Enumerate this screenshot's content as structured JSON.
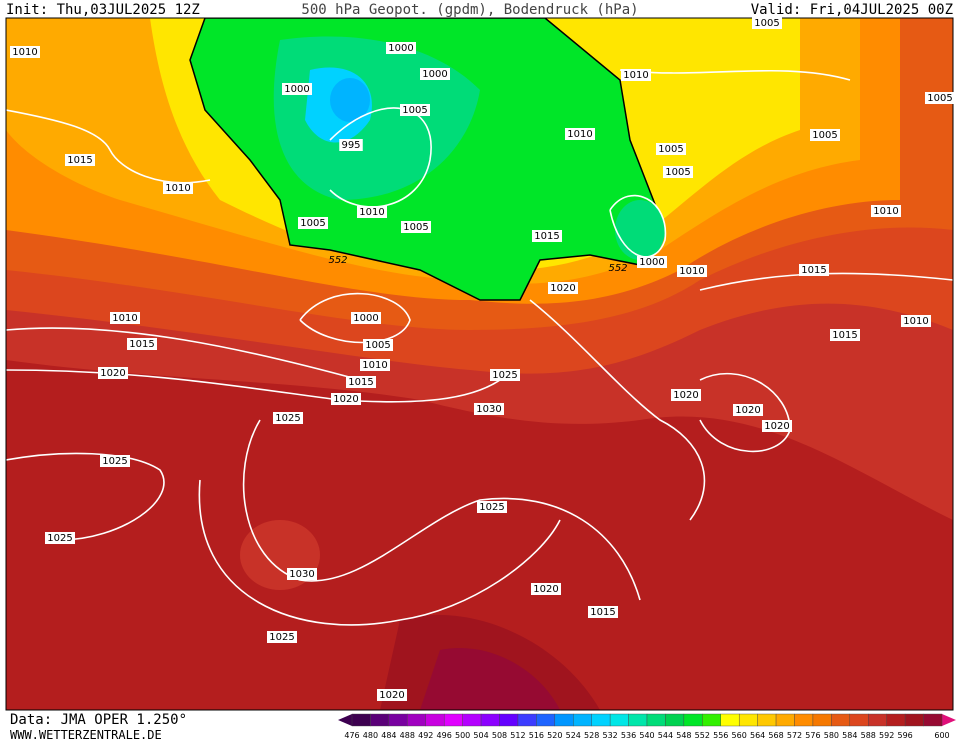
{
  "header": {
    "init": "Init: Thu,03JUL2025 12Z",
    "title": "500 hPa Geopot. (gpdm), Bodendruck (hPa)",
    "valid": "Valid: Fri,04JUL2025 00Z"
  },
  "footer": {
    "data": "Data: JMA OPER 1.250°",
    "site": "WWW.WETTERZENTRALE.DE"
  },
  "isobar_labels": [
    1010,
    1015,
    1010,
    1010,
    1015,
    1020,
    1025,
    1025,
    1030,
    1025,
    1020,
    1025,
    1020,
    1015,
    1010,
    1005,
    1000,
    1030,
    1025,
    1020,
    1015,
    1005,
    1005,
    1010,
    995,
    1005,
    1000,
    1000,
    1000,
    1010,
    1010,
    1005,
    1005,
    1010,
    1000,
    1005,
    1005,
    1005,
    1010,
    1015,
    1015,
    1010,
    1020,
    1020,
    1020,
    1025,
    1020,
    1015
  ],
  "geopotential_labels": [
    552,
    552
  ],
  "colorbar": {
    "values": [
      476,
      480,
      484,
      488,
      492,
      496,
      500,
      504,
      508,
      512,
      516,
      520,
      524,
      528,
      532,
      536,
      540,
      544,
      548,
      552,
      556,
      560,
      564,
      568,
      572,
      576,
      580,
      584,
      588,
      592,
      596,
      600
    ],
    "colors": [
      "#3d0050",
      "#5a0078",
      "#7800a0",
      "#a000c0",
      "#c800e0",
      "#e000ff",
      "#b400ff",
      "#8c00ff",
      "#6400ff",
      "#3c3cff",
      "#1e64ff",
      "#0096ff",
      "#00b4ff",
      "#00d2ff",
      "#00e6e6",
      "#00e6aa",
      "#00dc78",
      "#00d250",
      "#00e628",
      "#32f000",
      "#ffff00",
      "#ffe600",
      "#ffc800",
      "#ffaa00",
      "#ff8c00",
      "#f57800",
      "#e65a14",
      "#dc461e",
      "#c83228",
      "#b41e1e",
      "#a0141e",
      "#960a32"
    ]
  }
}
